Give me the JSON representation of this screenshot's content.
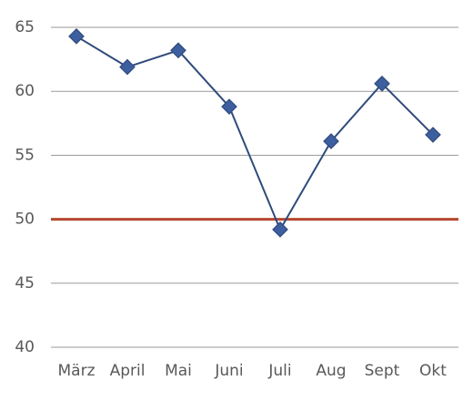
{
  "chart_data": {
    "type": "line",
    "categories": [
      "März",
      "April",
      "Mai",
      "Juni",
      "Juli",
      "Aug",
      "Sept",
      "Okt"
    ],
    "values": [
      64.3,
      61.9,
      63.2,
      58.8,
      49.2,
      56.1,
      60.6,
      56.6
    ],
    "color": "#2f4b7c",
    "marker_color": "#3d5f9f",
    "reference_line": {
      "value": 50,
      "color": "#b5472f"
    },
    "ylim": [
      40,
      65
    ],
    "yticks": [
      40,
      45,
      50,
      55,
      60,
      65
    ],
    "grid": true
  }
}
